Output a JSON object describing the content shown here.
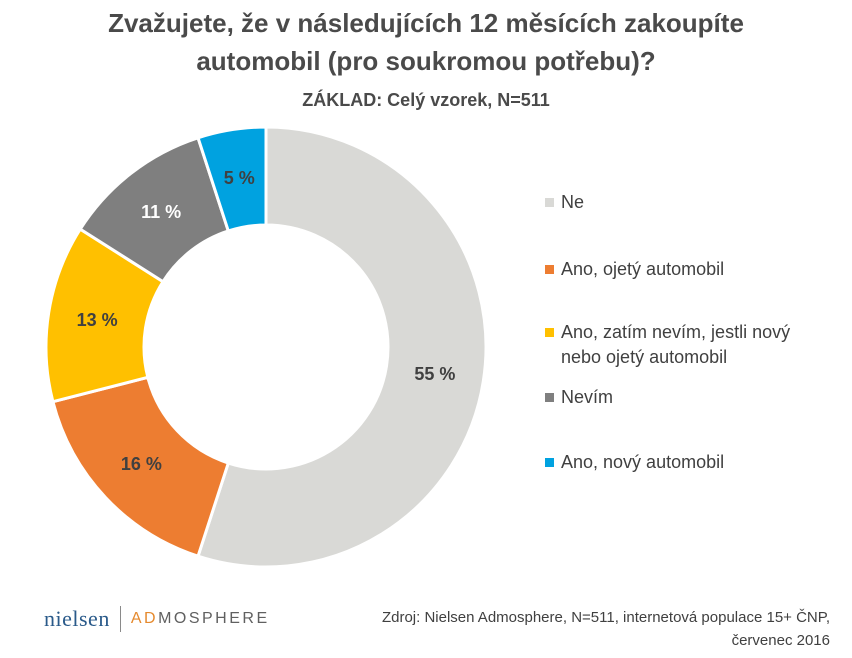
{
  "chart_data": {
    "type": "pie",
    "variant": "donut",
    "title": "Zvažujete, že v následujících 12 měsících zakoupíte automobil (pro soukromou potřebu)?",
    "title_lines": [
      "Zvažujete, že v následujících 12 měsících zakoupíte",
      "automobil (pro soukromou potřebu)?"
    ],
    "subtitle": "ZÁKLAD: Celý vzorek, N=511",
    "legend_position": "right",
    "slices": [
      {
        "label": "Ne",
        "value": 55,
        "display": "55 %",
        "color": "#d9d9d6"
      },
      {
        "label": "Ano, ojetý automobil",
        "value": 16,
        "display": "16 %",
        "color": "#ed7d31"
      },
      {
        "label": "Ano, zatím nevím, jestli nový nebo ojetý automobil",
        "value": 13,
        "display": "13 %",
        "color": "#ffc000"
      },
      {
        "label": "Nevím",
        "value": 11,
        "display": "11 %",
        "color": "#7f7f7f"
      },
      {
        "label": "Ano, nový automobil",
        "value": 5,
        "display": "5 %",
        "color": "#00a2e0"
      }
    ]
  },
  "legend": {
    "items": [
      {
        "label": "Ne",
        "color": "#d9d9d6"
      },
      {
        "label": "Ano, ojetý automobil",
        "color": "#ed7d31"
      },
      {
        "label": "Ano, zatím nevím, jestli nový nebo ojetý automobil",
        "color": "#ffc000"
      },
      {
        "label": "Nevím",
        "color": "#7f7f7f"
      },
      {
        "label": "Ano, nový automobil",
        "color": "#00a2e0"
      }
    ]
  },
  "footer": {
    "logo_left": "nielsen",
    "logo_right_accent": "AD",
    "logo_right_rest": "MOSPHERE",
    "source_line1": "Zdroj: Nielsen Admosphere, N=511, internetová populace 15+ ČNP,",
    "source_line2": "červenec 2016"
  }
}
